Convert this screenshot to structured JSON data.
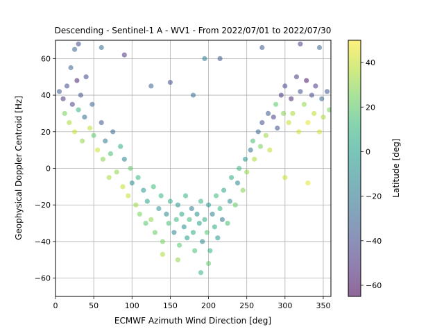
{
  "chart_data": {
    "type": "scatter",
    "title": "Descending - Sentinel-1 A - WV1 - From 2022/07/01 to 2022/07/30",
    "xlabel": "ECMWF Azimuth Wind Direction [deg]",
    "ylabel": "Geophysical Doppler Centroid [Hz]",
    "xlim": [
      0,
      360
    ],
    "ylim": [
      -70,
      70
    ],
    "xticks": [
      "0",
      "50",
      "100",
      "150",
      "200",
      "250",
      "300",
      "350"
    ],
    "yticks": [
      "−60",
      "−40",
      "−20",
      "0",
      "20",
      "40",
      "60"
    ],
    "grid": true,
    "marker_alpha": 0.55,
    "colorbar": {
      "label": "Latitude [deg]",
      "range": [
        -65,
        50
      ],
      "ticks": [
        "−60",
        "−40",
        "−20",
        "0",
        "20",
        "40"
      ],
      "colormap": "viridis",
      "stops": [
        "#440154",
        "#482878",
        "#3e4989",
        "#31688e",
        "#26828e",
        "#1f9e89",
        "#35b779",
        "#6ece58",
        "#b5de2b",
        "#fde725"
      ]
    },
    "series": [
      {
        "points_sample_x_y_lat": [
          [
            5,
            42,
            -35
          ],
          [
            10,
            38,
            -50
          ],
          [
            12,
            30,
            25
          ],
          [
            15,
            45,
            -40
          ],
          [
            18,
            25,
            35
          ],
          [
            20,
            55,
            -30
          ],
          [
            22,
            35,
            -45
          ],
          [
            25,
            20,
            40
          ],
          [
            28,
            48,
            -55
          ],
          [
            30,
            32,
            10
          ],
          [
            33,
            40,
            -38
          ],
          [
            35,
            15,
            30
          ],
          [
            38,
            28,
            -25
          ],
          [
            40,
            50,
            -42
          ],
          [
            45,
            22,
            38
          ],
          [
            48,
            35,
            -30
          ],
          [
            50,
            18,
            20
          ],
          [
            55,
            10,
            42
          ],
          [
            60,
            25,
            -35
          ],
          [
            62,
            5,
            28
          ],
          [
            65,
            15,
            -20
          ],
          [
            70,
            -5,
            35
          ],
          [
            72,
            8,
            15
          ],
          [
            75,
            20,
            -28
          ],
          [
            80,
            -2,
            30
          ],
          [
            85,
            12,
            5
          ],
          [
            88,
            -10,
            38
          ],
          [
            90,
            5,
            -15
          ],
          [
            95,
            -15,
            40
          ],
          [
            98,
            0,
            20
          ],
          [
            100,
            -8,
            -10
          ],
          [
            105,
            -20,
            32
          ],
          [
            108,
            -5,
            10
          ],
          [
            110,
            -25,
            25
          ],
          [
            115,
            -12,
            -5
          ],
          [
            118,
            -30,
            18
          ],
          [
            120,
            -18,
            0
          ],
          [
            125,
            -28,
            30
          ],
          [
            128,
            -10,
            12
          ],
          [
            130,
            -35,
            22
          ],
          [
            135,
            -22,
            -8
          ],
          [
            138,
            -15,
            8
          ],
          [
            140,
            -40,
            25
          ],
          [
            145,
            -25,
            -12
          ],
          [
            148,
            -30,
            15
          ],
          [
            150,
            -18,
            5
          ],
          [
            155,
            -35,
            -15
          ],
          [
            158,
            -28,
            10
          ],
          [
            160,
            -20,
            -5
          ],
          [
            162,
            -42,
            18
          ],
          [
            165,
            -25,
            2
          ],
          [
            168,
            -32,
            -10
          ],
          [
            170,
            -15,
            8
          ],
          [
            172,
            -38,
            -2
          ],
          [
            175,
            -28,
            12
          ],
          [
            178,
            -22,
            -18
          ],
          [
            180,
            -35,
            5
          ],
          [
            182,
            -45,
            15
          ],
          [
            185,
            -25,
            -8
          ],
          [
            188,
            -30,
            0
          ],
          [
            190,
            -18,
            10
          ],
          [
            192,
            -40,
            -12
          ],
          [
            195,
            -28,
            6
          ],
          [
            198,
            -35,
            18
          ],
          [
            200,
            -20,
            -4
          ],
          [
            202,
            -45,
            10
          ],
          [
            205,
            -25,
            -15
          ],
          [
            208,
            -32,
            4
          ],
          [
            210,
            -15,
            12
          ],
          [
            212,
            -38,
            -6
          ],
          [
            215,
            -22,
            8
          ],
          [
            218,
            -28,
            -20
          ],
          [
            220,
            -12,
            2
          ],
          [
            225,
            -30,
            15
          ],
          [
            228,
            -18,
            -10
          ],
          [
            230,
            -5,
            5
          ],
          [
            235,
            -20,
            22
          ],
          [
            238,
            -8,
            -12
          ],
          [
            240,
            0,
            10
          ],
          [
            245,
            -12,
            28
          ],
          [
            248,
            5,
            -5
          ],
          [
            250,
            -2,
            30
          ],
          [
            255,
            10,
            -25
          ],
          [
            258,
            15,
            15
          ],
          [
            260,
            5,
            35
          ],
          [
            265,
            20,
            -30
          ],
          [
            268,
            12,
            25
          ],
          [
            270,
            25,
            -40
          ],
          [
            275,
            18,
            32
          ],
          [
            278,
            30,
            -35
          ],
          [
            280,
            10,
            38
          ],
          [
            285,
            28,
            -45
          ],
          [
            288,
            35,
            20
          ],
          [
            290,
            22,
            -38
          ],
          [
            295,
            40,
            -50
          ],
          [
            298,
            30,
            28
          ],
          [
            300,
            45,
            -42
          ],
          [
            305,
            25,
            40
          ],
          [
            308,
            38,
            -55
          ],
          [
            310,
            30,
            35
          ],
          [
            315,
            50,
            -45
          ],
          [
            318,
            20,
            42
          ],
          [
            320,
            42,
            -38
          ],
          [
            325,
            35,
            30
          ],
          [
            328,
            48,
            -60
          ],
          [
            330,
            25,
            45
          ],
          [
            335,
            40,
            -40
          ],
          [
            338,
            30,
            38
          ],
          [
            340,
            45,
            -48
          ],
          [
            345,
            20,
            42
          ],
          [
            348,
            38,
            -30
          ],
          [
            350,
            28,
            35
          ],
          [
            355,
            42,
            -35
          ],
          [
            358,
            32,
            25
          ],
          [
            25,
            65,
            -30
          ],
          [
            30,
            68,
            -40
          ],
          [
            60,
            66,
            -25
          ],
          [
            270,
            66,
            -35
          ],
          [
            320,
            68,
            -45
          ],
          [
            345,
            66,
            -30
          ],
          [
            90,
            62,
            -50
          ],
          [
            195,
            60,
            -20
          ],
          [
            215,
            60,
            -35
          ],
          [
            190,
            -57,
            10
          ],
          [
            200,
            -52,
            20
          ],
          [
            160,
            -50,
            30
          ],
          [
            140,
            -47,
            35
          ],
          [
            330,
            -8,
            45
          ],
          [
            300,
            -5,
            40
          ],
          [
            125,
            45,
            -30
          ],
          [
            150,
            47,
            -40
          ],
          [
            180,
            40,
            -25
          ]
        ]
      }
    ]
  }
}
